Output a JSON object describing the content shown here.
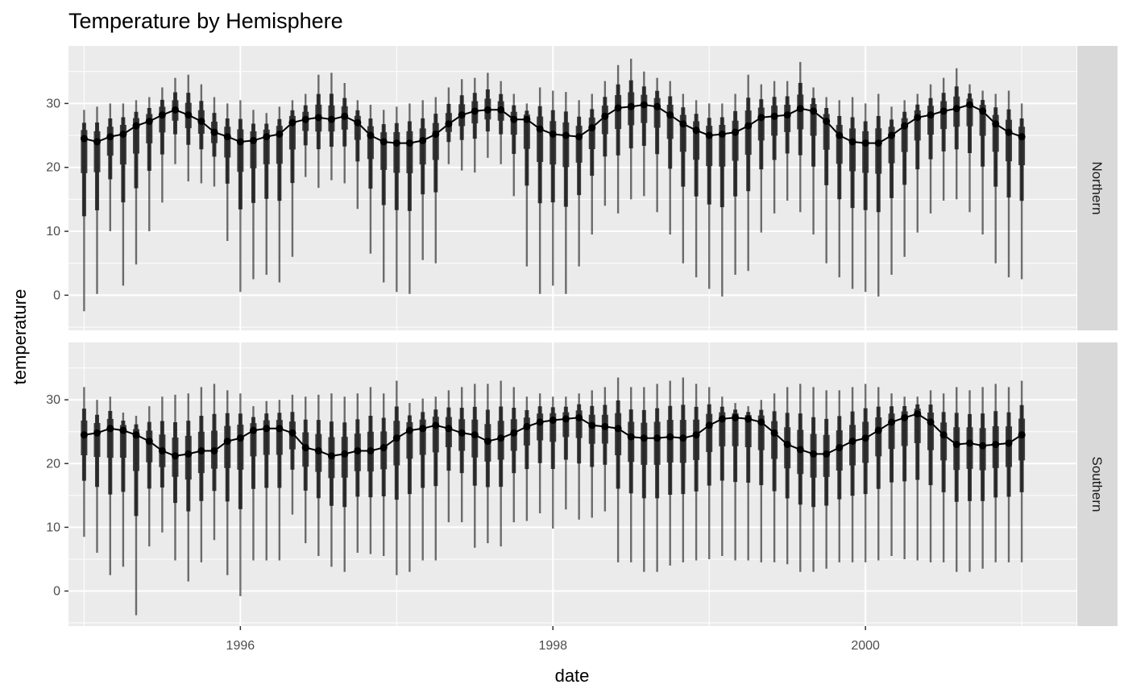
{
  "chart_data": {
    "type": "line",
    "title": "Temperature by Hemisphere",
    "xlabel": "date",
    "ylabel": "temperature",
    "xlim": [
      1994.9,
      2001.35
    ],
    "ylim": [
      -5.5,
      39
    ],
    "x_ticks": [
      1996,
      1998,
      2000
    ],
    "x_tick_labels": [
      "1996",
      "1998",
      "2000"
    ],
    "y_ticks": [
      0,
      10,
      20,
      30
    ],
    "y_tick_labels": [
      "0",
      "10",
      "20",
      "30"
    ],
    "grid": true,
    "facet": "rows",
    "x": [
      1995.0,
      1995.083,
      1995.167,
      1995.25,
      1995.333,
      1995.417,
      1995.5,
      1995.583,
      1995.667,
      1995.75,
      1995.833,
      1995.917,
      1996.0,
      1996.083,
      1996.167,
      1996.25,
      1996.333,
      1996.417,
      1996.5,
      1996.583,
      1996.667,
      1996.75,
      1996.833,
      1996.917,
      1997.0,
      1997.083,
      1997.167,
      1997.25,
      1997.333,
      1997.417,
      1997.5,
      1997.583,
      1997.667,
      1997.75,
      1997.833,
      1997.917,
      1998.0,
      1998.083,
      1998.167,
      1998.25,
      1998.333,
      1998.417,
      1998.5,
      1998.583,
      1998.667,
      1998.75,
      1998.833,
      1998.917,
      1999.0,
      1999.083,
      1999.167,
      1999.25,
      1999.333,
      1999.417,
      1999.5,
      1999.583,
      1999.667,
      1999.75,
      1999.833,
      1999.917,
      2000.0,
      2000.083,
      2000.167,
      2000.25,
      2000.333,
      2000.417,
      2000.5,
      2000.583,
      2000.667,
      2000.75,
      2000.833,
      2000.917,
      2001.0
    ],
    "panels": [
      {
        "strip": "Northern",
        "median": [
          24.5,
          24.0,
          24.8,
          25.2,
          26.5,
          27.2,
          28.2,
          29.0,
          28.2,
          27.2,
          25.5,
          24.8,
          24.0,
          24.2,
          24.8,
          25.2,
          27.0,
          27.5,
          27.8,
          27.5,
          28.0,
          27.0,
          25.0,
          24.0,
          23.8,
          23.8,
          24.2,
          25.2,
          26.8,
          28.2,
          28.8,
          29.0,
          29.0,
          27.5,
          27.5,
          26.0,
          25.2,
          25.0,
          24.8,
          26.2,
          28.0,
          29.3,
          29.5,
          29.8,
          29.5,
          28.2,
          26.8,
          25.8,
          25.0,
          25.2,
          25.5,
          26.5,
          27.8,
          28.0,
          28.2,
          29.2,
          28.8,
          27.2,
          25.0,
          24.0,
          23.8,
          23.8,
          25.0,
          26.5,
          27.8,
          28.2,
          28.8,
          29.2,
          29.8,
          28.8,
          26.8,
          25.5,
          24.8
        ],
        "low": [
          -2.5,
          0.2,
          10.0,
          1.5,
          4.8,
          10.0,
          14.5,
          20.5,
          17.8,
          17.5,
          17.0,
          8.5,
          0.5,
          2.5,
          3.2,
          2.0,
          6.0,
          18.5,
          16.8,
          18.0,
          17.5,
          13.5,
          6.5,
          2.0,
          0.5,
          0.2,
          5.5,
          5.0,
          20.5,
          19.5,
          19.2,
          21.5,
          20.5,
          15.5,
          4.5,
          0.2,
          1.5,
          0.2,
          4.5,
          9.5,
          14.0,
          12.8,
          15.0,
          15.5,
          13.0,
          9.5,
          5.0,
          2.8,
          1.0,
          -0.2,
          3.2,
          3.8,
          9.8,
          12.8,
          14.8,
          13.0,
          9.5,
          5.0,
          2.8,
          1.0,
          0.5,
          -0.2,
          3.2,
          6.0,
          9.8,
          12.8,
          14.8,
          15.0,
          13.0,
          9.5,
          5.0,
          2.8,
          2.5
        ],
        "high": [
          29.0,
          29.5,
          30.0,
          30.0,
          30.5,
          31.0,
          32.5,
          34.0,
          34.5,
          33.0,
          31.0,
          30.0,
          30.5,
          29.0,
          28.5,
          29.5,
          30.5,
          31.5,
          34.5,
          34.8,
          33.2,
          30.5,
          29.8,
          29.0,
          29.5,
          30.0,
          30.5,
          31.0,
          32.5,
          33.8,
          34.0,
          34.8,
          33.5,
          31.5,
          30.0,
          32.5,
          32.0,
          31.8,
          30.5,
          31.5,
          33.5,
          36.0,
          37.0,
          35.0,
          34.0,
          33.5,
          31.5,
          30.5,
          30.0,
          30.0,
          31.5,
          34.5,
          33.0,
          33.5,
          33.5,
          36.5,
          32.5,
          31.0,
          30.5,
          31.0,
          30.0,
          31.5,
          29.5,
          30.5,
          31.5,
          33.0,
          34.0,
          35.5,
          33.0,
          32.0,
          31.5,
          32.0,
          30.0
        ]
      },
      {
        "strip": "Southern",
        "median": [
          24.5,
          24.8,
          25.5,
          25.2,
          24.5,
          23.5,
          22.0,
          21.2,
          21.5,
          22.0,
          22.0,
          23.5,
          24.0,
          25.2,
          25.5,
          25.5,
          24.8,
          22.5,
          22.0,
          21.2,
          21.5,
          22.0,
          22.0,
          22.5,
          24.0,
          25.2,
          25.5,
          26.0,
          25.5,
          24.8,
          24.5,
          23.5,
          24.0,
          24.8,
          25.8,
          26.5,
          26.8,
          27.0,
          27.2,
          26.0,
          25.8,
          25.5,
          24.2,
          24.0,
          24.0,
          24.2,
          24.0,
          24.5,
          26.0,
          27.0,
          27.2,
          27.0,
          26.5,
          24.8,
          23.0,
          22.2,
          21.5,
          21.5,
          22.5,
          23.5,
          24.0,
          25.2,
          26.5,
          27.2,
          27.8,
          26.5,
          24.5,
          23.0,
          23.2,
          22.8,
          23.0,
          23.2,
          24.5
        ],
        "low": [
          8.5,
          6.0,
          2.5,
          3.8,
          -3.8,
          7.0,
          9.2,
          4.8,
          1.5,
          4.5,
          8.0,
          2.5,
          -0.8,
          4.8,
          4.8,
          4.8,
          12.0,
          7.5,
          5.5,
          3.8,
          3.0,
          6.0,
          5.8,
          5.5,
          2.5,
          3.0,
          4.8,
          4.8,
          10.8,
          10.8,
          6.8,
          7.5,
          7.0,
          10.8,
          11.0,
          12.2,
          9.8,
          12.8,
          11.2,
          11.5,
          12.5,
          4.5,
          4.5,
          3.0,
          3.0,
          4.0,
          4.5,
          4.8,
          5.0,
          5.5,
          4.8,
          4.8,
          4.5,
          4.5,
          4.2,
          3.0,
          3.0,
          3.5,
          4.5,
          4.5,
          4.5,
          4.8,
          5.5,
          5.0,
          4.8,
          4.5,
          4.5,
          3.0,
          3.0,
          3.5,
          4.5,
          4.5,
          4.5
        ],
        "high": [
          32.0,
          30.0,
          30.5,
          28.0,
          27.5,
          29.0,
          30.5,
          30.8,
          31.0,
          32.0,
          32.5,
          31.5,
          31.0,
          29.0,
          29.8,
          30.0,
          30.8,
          30.5,
          30.8,
          31.0,
          30.5,
          31.0,
          32.0,
          31.0,
          33.0,
          29.5,
          30.2,
          30.5,
          31.5,
          32.0,
          32.5,
          32.5,
          33.0,
          32.0,
          30.5,
          31.0,
          30.5,
          30.5,
          31.0,
          31.5,
          32.0,
          33.5,
          32.0,
          32.0,
          32.5,
          33.0,
          33.5,
          32.5,
          32.0,
          30.5,
          29.5,
          29.0,
          30.0,
          31.0,
          32.0,
          32.5,
          32.0,
          31.5,
          31.5,
          32.0,
          32.5,
          32.0,
          31.0,
          30.5,
          30.5,
          31.5,
          31.0,
          32.0,
          31.5,
          32.0,
          32.5,
          32.0,
          33.0
        ]
      }
    ]
  }
}
